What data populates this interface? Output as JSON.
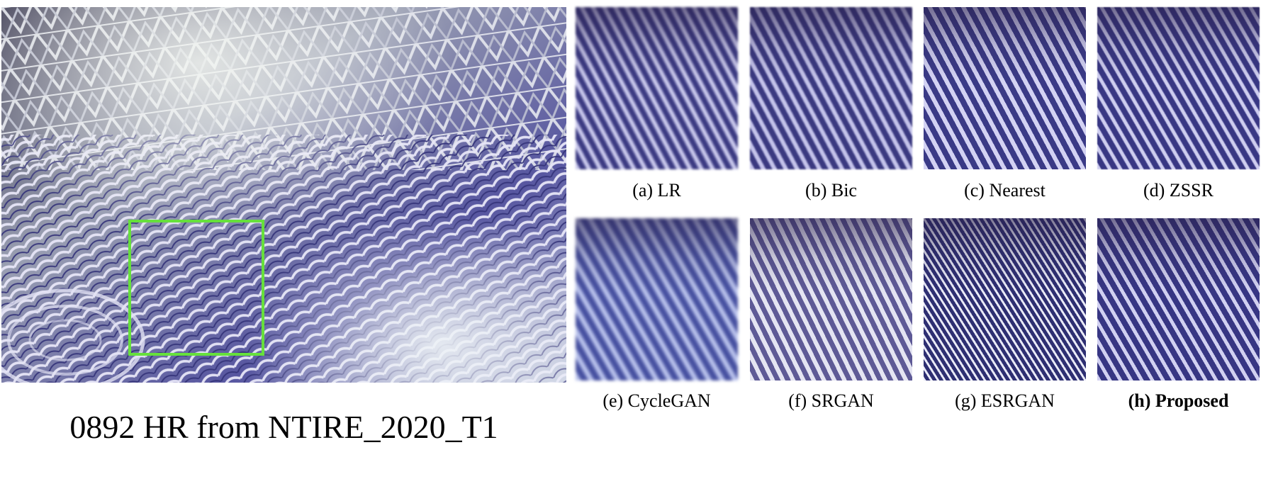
{
  "hr": {
    "caption": "0892 HR from NTIRE_2020_T1"
  },
  "panels": [
    {
      "label": "(a) LR"
    },
    {
      "label": "(b) Bic"
    },
    {
      "label": "(c) Nearest"
    },
    {
      "label": "(d) ZSSR"
    },
    {
      "label": "(e) CycleGAN"
    },
    {
      "label": "(f) SRGAN"
    },
    {
      "label": "(g) ESRGAN"
    },
    {
      "label": "(h) Proposed"
    }
  ],
  "colors": {
    "highlight_box": "#66e03c"
  }
}
